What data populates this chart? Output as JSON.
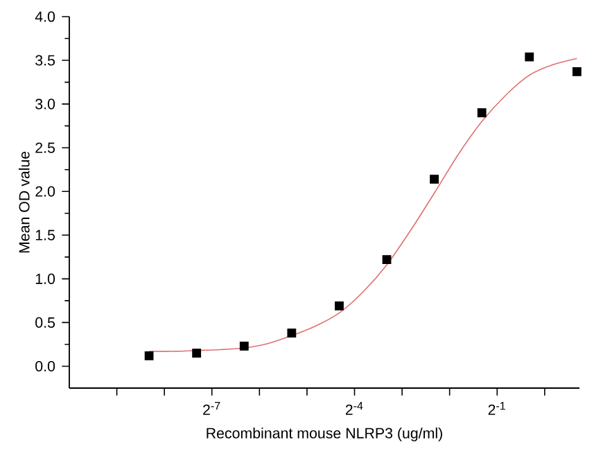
{
  "chart_data": {
    "type": "scatter",
    "xlabel": "Recombinant mouse NLRP3 (ug/ml)",
    "ylabel": "Mean OD value",
    "log": "x",
    "grid": false,
    "marker": "square",
    "xlim": [
      0.0009765625,
      1.66
    ],
    "ylim": [
      -0.25,
      4.0
    ],
    "xticks": [
      {
        "value": 0.001953125,
        "label": null
      },
      {
        "value": 0.00390625,
        "label": null
      },
      {
        "value": 0.0078125,
        "label": "2$^{-7}$"
      },
      {
        "value": 0.015625,
        "label": null
      },
      {
        "value": 0.03125,
        "label": null
      },
      {
        "value": 0.0625,
        "label": "2$^{-4}$"
      },
      {
        "value": 0.125,
        "label": null
      },
      {
        "value": 0.25,
        "label": null
      },
      {
        "value": 0.5,
        "label": "2$^{-1}$"
      },
      {
        "value": 1,
        "label": null
      }
    ],
    "yticks": [
      {
        "value": 0,
        "label": "0.0"
      },
      0.5,
      {
        "value": 1,
        "label": "1.0"
      },
      1.5,
      {
        "value": 2,
        "label": "2.0"
      },
      2.5,
      {
        "value": 3,
        "label": "3.0"
      },
      3.5,
      {
        "value": 4,
        "label": "4.0"
      }
    ],
    "series": [
      {
        "color": "#000000",
        "x": [
          0.003125,
          0.00625,
          0.0125,
          0.025,
          0.05,
          0.1,
          0.2,
          0.4,
          0.8,
          1.6
        ],
        "values": [
          0.12,
          0.15,
          0.23,
          0.38,
          0.69,
          1.22,
          2.14,
          2.9,
          3.54,
          3.37
        ]
      },
      {
        "type": "line",
        "color": "#e07070",
        "marker": "none",
        "line_style": "solid",
        "x": [
          0.003125,
          0.00442,
          0.00625,
          0.00884,
          0.0125,
          0.0177,
          0.025,
          0.0354,
          0.05,
          0.0707,
          0.1,
          0.141,
          0.2,
          0.283,
          0.4,
          0.566,
          0.8,
          1.13,
          1.6
        ],
        "values": [
          0.17,
          0.17,
          0.18,
          0.19,
          0.21,
          0.26,
          0.35,
          0.46,
          0.61,
          0.85,
          1.16,
          1.55,
          1.98,
          2.42,
          2.8,
          3.1,
          3.33,
          3.45,
          3.52
        ]
      }
    ]
  }
}
